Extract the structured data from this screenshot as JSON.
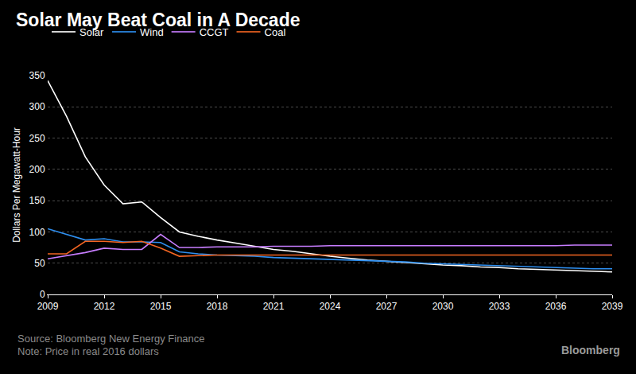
{
  "chart_data": {
    "type": "line",
    "title": "Solar May Beat Coal in A Decade",
    "y_label": "Dollars Per Megawatt-Hour",
    "source": "Source: Bloomberg New Energy Finance",
    "note": "Note: Price in real 2016 dollars",
    "brand": "Bloomberg",
    "x": [
      2009,
      2010,
      2011,
      2012,
      2013,
      2014,
      2015,
      2016,
      2017,
      2018,
      2019,
      2020,
      2021,
      2022,
      2023,
      2024,
      2025,
      2026,
      2027,
      2028,
      2029,
      2030,
      2031,
      2032,
      2033,
      2034,
      2035,
      2036,
      2037,
      2038,
      2039
    ],
    "series": [
      {
        "name": "Solar",
        "color": "#ffffff",
        "values": [
          342,
          285,
          220,
          175,
          145,
          148,
          123,
          100,
          93,
          87,
          82,
          77,
          72,
          69,
          65,
          61,
          58,
          55,
          53,
          51,
          49,
          47,
          46,
          44,
          43,
          41,
          40,
          39,
          38,
          37,
          36
        ]
      },
      {
        "name": "Wind",
        "color": "#2e8ff0",
        "values": [
          105,
          96,
          87,
          89,
          84,
          84,
          83,
          68,
          65,
          63,
          62,
          61,
          59,
          58,
          57,
          56,
          55,
          54,
          53,
          52,
          50,
          49,
          48,
          47,
          46,
          45,
          44,
          43,
          42,
          41,
          41
        ]
      },
      {
        "name": "CCGT",
        "color": "#c77dff",
        "values": [
          57,
          62,
          67,
          74,
          72,
          72,
          96,
          75,
          75,
          76,
          76,
          76,
          77,
          77,
          77,
          78,
          78,
          78,
          78,
          78,
          78,
          78,
          78,
          78,
          78,
          78,
          78,
          78,
          79,
          79,
          79
        ]
      },
      {
        "name": "Coal",
        "color": "#f26522",
        "values": [
          65,
          65,
          85,
          85,
          83,
          85,
          74,
          61,
          62,
          63,
          63,
          63,
          63,
          63,
          63,
          63,
          63,
          63,
          63,
          63,
          63,
          63,
          63,
          63,
          63,
          63,
          63,
          63,
          63,
          63,
          63
        ]
      }
    ],
    "xlim": [
      2009,
      2039
    ],
    "xticks": [
      2009,
      2012,
      2015,
      2018,
      2021,
      2024,
      2027,
      2030,
      2033,
      2036,
      2039
    ],
    "ylim": [
      0,
      350
    ],
    "yticks": [
      0,
      50,
      100,
      150,
      200,
      250,
      300,
      350
    ],
    "grid": true,
    "legend": "top-left"
  }
}
